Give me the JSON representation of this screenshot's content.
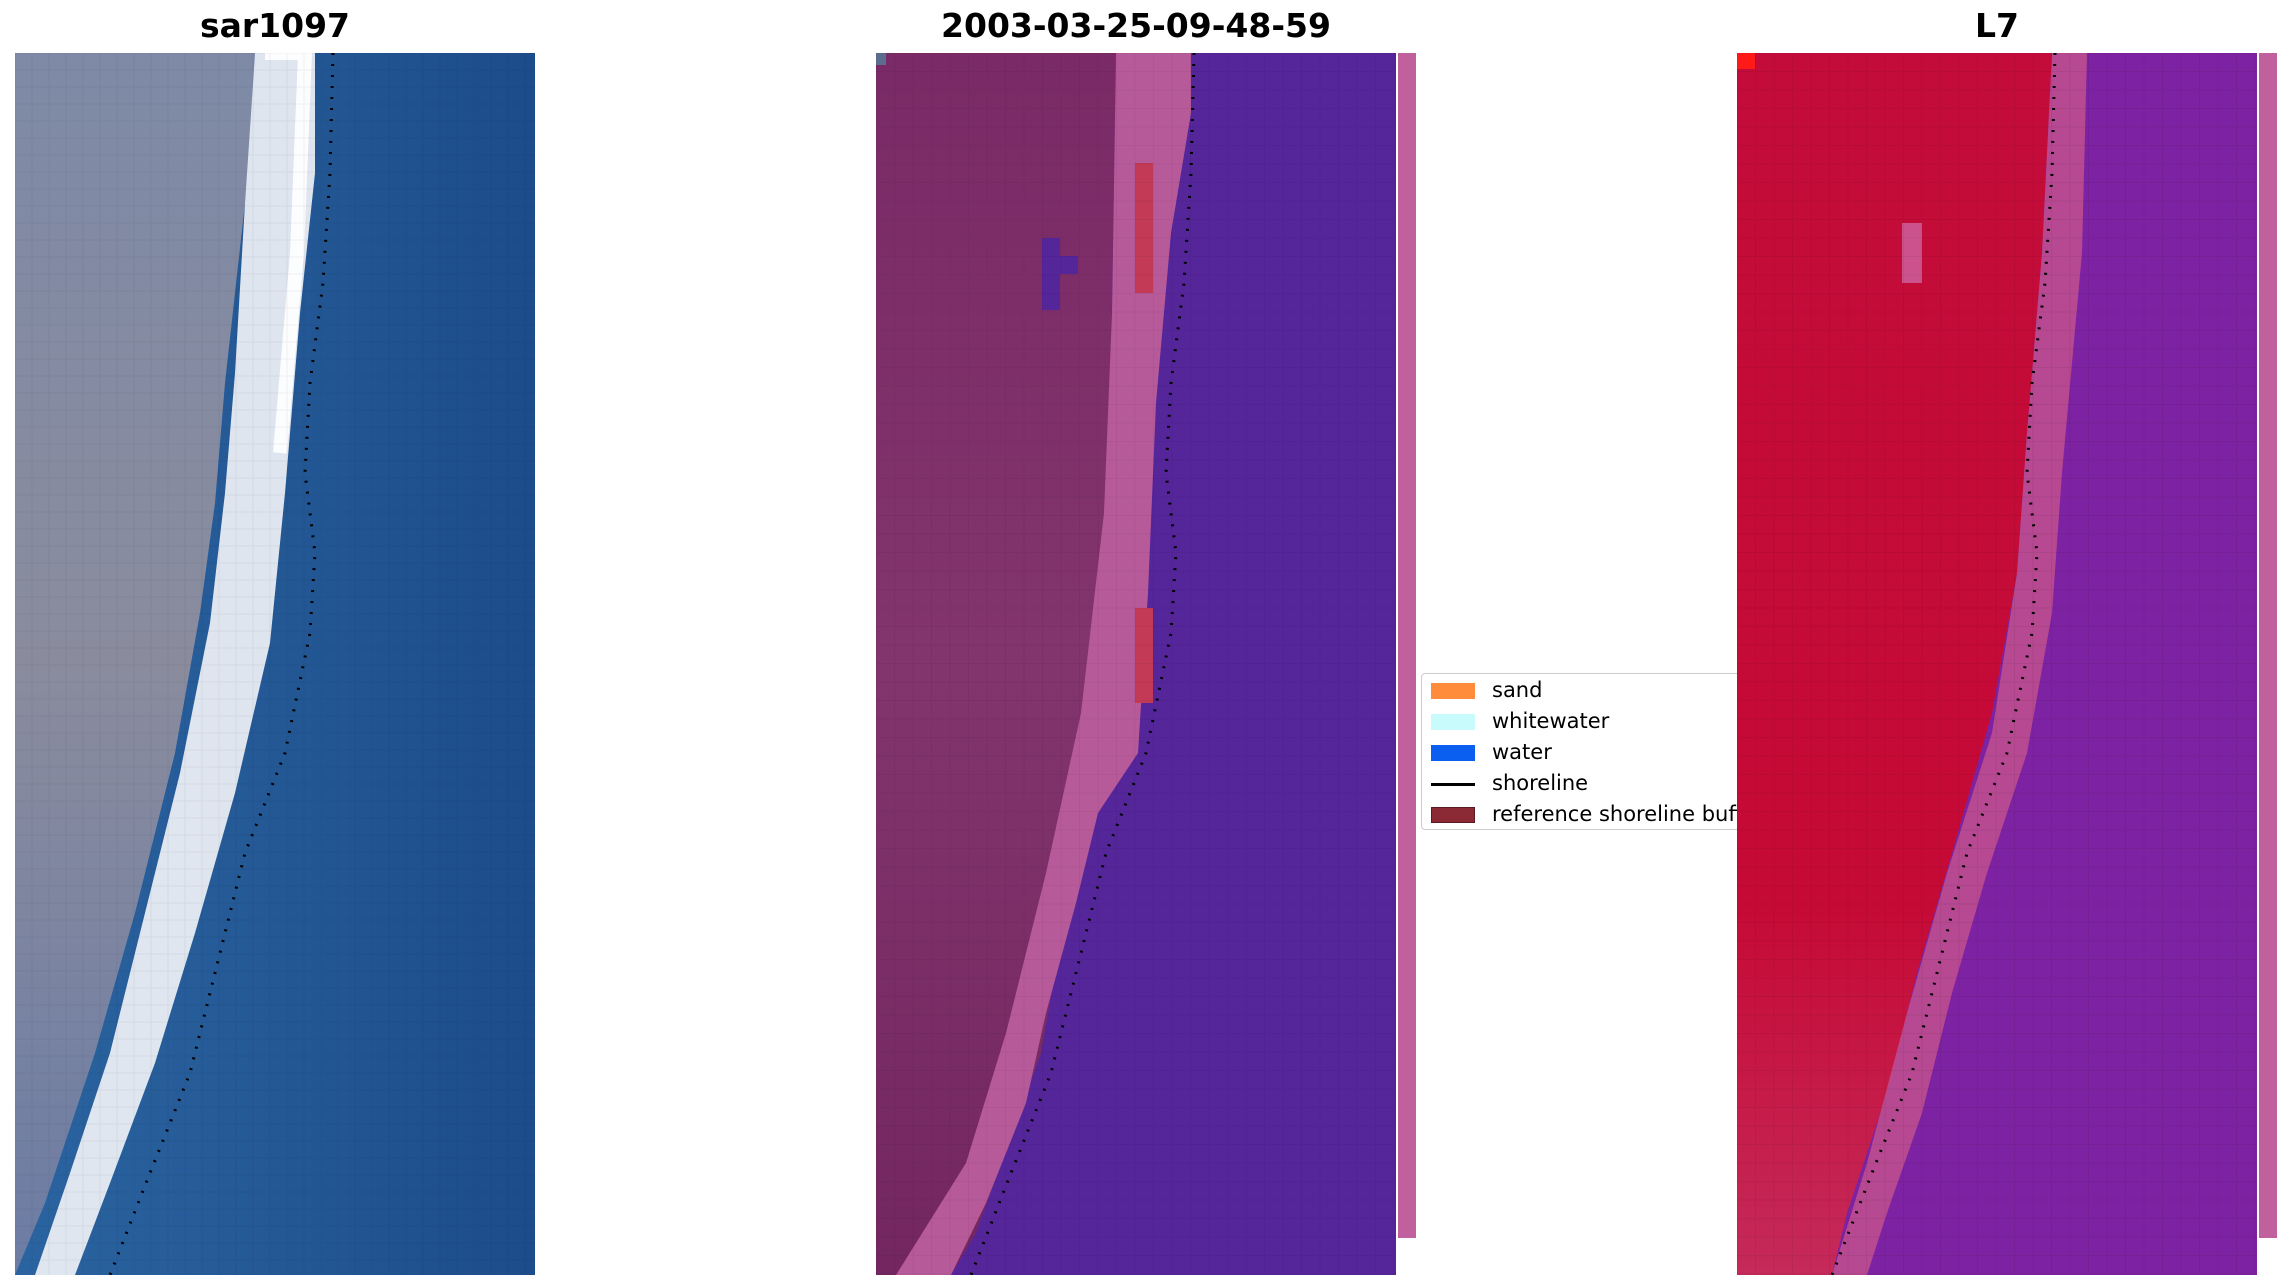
{
  "panels": [
    {
      "title": "sar1097"
    },
    {
      "title": "2003-03-25-09-48-59"
    },
    {
      "title": "L7"
    }
  ],
  "legend": {
    "items": [
      {
        "label": "sand",
        "color": "#ff8c3a",
        "kind": "patch"
      },
      {
        "label": "whitewater",
        "color": "#c8fbfb",
        "kind": "patch"
      },
      {
        "label": "water",
        "color": "#0a5ef0",
        "kind": "patch"
      },
      {
        "label": "shoreline",
        "color": "#000000",
        "kind": "line"
      },
      {
        "label": "reference shoreline buffer",
        "color": "#8b2a35",
        "kind": "patch"
      }
    ]
  },
  "colors": {
    "rgb_water": "#1f4f8a",
    "rgb_land": "#7f86a3",
    "rgb_beach": "#eef2f6",
    "classified_water": "#55259a",
    "classified_land": "#7b2a64",
    "classified_sand": "#b85a9a",
    "classified_buffer": "#c03a55",
    "mndwi_land": "#c20a38",
    "mndwi_water": "#7a1fa0",
    "mndwi_edge": "#d070b0"
  }
}
